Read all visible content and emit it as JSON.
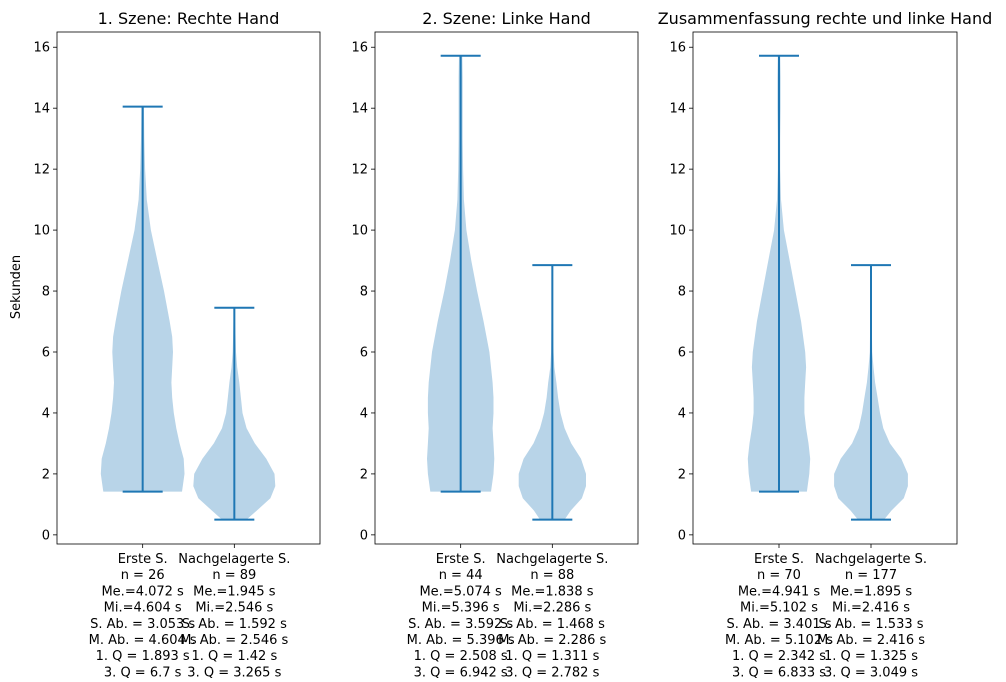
{
  "chart_data": {
    "type": "violin",
    "ylabel": "Sekunden",
    "ylim": [
      -0.3,
      16.5
    ],
    "yticks": [
      0,
      2,
      4,
      6,
      8,
      10,
      12,
      14,
      16
    ],
    "colors": {
      "body": "#b8d4e8",
      "line": "#1f77b4"
    },
    "panels": [
      {
        "title": "1. Szene: Rechte Hand",
        "violins": [
          {
            "labels": [
              "Erste S.",
              "n = 26",
              "Me.=4.072 s",
              "Mi.=4.604 s",
              "S. Ab. = 3.053 s",
              "M. Ab. = 4.604 s",
              "1. Q = 1.893 s",
              "3. Q = 6.7 s"
            ],
            "min": 1.42,
            "max": 14.05,
            "density": [
              [
                1.42,
                0.96
              ],
              [
                1.6,
                0.98
              ],
              [
                2.0,
                1.02
              ],
              [
                2.5,
                1.0
              ],
              [
                3.0,
                0.9
              ],
              [
                3.5,
                0.82
              ],
              [
                4.0,
                0.76
              ],
              [
                4.5,
                0.72
              ],
              [
                5.0,
                0.7
              ],
              [
                5.5,
                0.72
              ],
              [
                6.0,
                0.74
              ],
              [
                6.5,
                0.72
              ],
              [
                7.0,
                0.66
              ],
              [
                8.0,
                0.52
              ],
              [
                9.0,
                0.36
              ],
              [
                10.0,
                0.2
              ],
              [
                11.0,
                0.1
              ],
              [
                12.0,
                0.06
              ],
              [
                13.0,
                0.04
              ],
              [
                14.05,
                0.03
              ]
            ]
          },
          {
            "labels": [
              "Nachgelagerte S.",
              "n = 89",
              "Me.=1.945 s",
              "Mi.=2.546 s",
              "S. Ab. = 1.592 s",
              "M. Ab. = 2.546 s",
              "1. Q = 1.42 s",
              "3. Q = 3.265 s"
            ],
            "min": 0.5,
            "max": 7.45,
            "density": [
              [
                0.5,
                0.3
              ],
              [
                0.8,
                0.55
              ],
              [
                1.2,
                0.88
              ],
              [
                1.6,
                1.0
              ],
              [
                2.0,
                0.98
              ],
              [
                2.5,
                0.78
              ],
              [
                3.0,
                0.5
              ],
              [
                3.5,
                0.3
              ],
              [
                4.0,
                0.2
              ],
              [
                4.5,
                0.16
              ],
              [
                5.0,
                0.12
              ],
              [
                5.5,
                0.07
              ],
              [
                6.0,
                0.04
              ],
              [
                6.5,
                0.03
              ],
              [
                7.0,
                0.02
              ],
              [
                7.45,
                0.02
              ]
            ]
          }
        ]
      },
      {
        "title": "2. Szene: Linke Hand",
        "violins": [
          {
            "labels": [
              "Erste S.",
              "n = 44",
              "Me.=5.074 s",
              "Mi.=5.396 s",
              "S. Ab. = 3.592 s",
              "M. Ab. = 5.396 s",
              "1. Q = 2.508 s",
              "3. Q = 6.942 s"
            ],
            "min": 1.42,
            "max": 15.72,
            "density": [
              [
                1.42,
                0.74
              ],
              [
                2.0,
                0.8
              ],
              [
                2.5,
                0.82
              ],
              [
                3.0,
                0.8
              ],
              [
                3.5,
                0.78
              ],
              [
                4.0,
                0.8
              ],
              [
                4.5,
                0.8
              ],
              [
                5.0,
                0.78
              ],
              [
                6.0,
                0.7
              ],
              [
                7.0,
                0.56
              ],
              [
                8.0,
                0.4
              ],
              [
                9.0,
                0.26
              ],
              [
                10.0,
                0.14
              ],
              [
                11.0,
                0.08
              ],
              [
                12.0,
                0.06
              ],
              [
                13.0,
                0.05
              ],
              [
                14.0,
                0.05
              ],
              [
                15.0,
                0.05
              ],
              [
                15.72,
                0.04
              ]
            ]
          },
          {
            "labels": [
              "Nachgelagerte S.",
              "n = 88",
              "Me.=1.838 s",
              "Mi.=2.286 s",
              "S. Ab. = 1.468 s",
              "M. Ab. = 2.286 s",
              "1. Q = 1.311 s",
              "3. Q = 2.782 s"
            ],
            "min": 0.5,
            "max": 8.85,
            "density": [
              [
                0.5,
                0.3
              ],
              [
                0.8,
                0.45
              ],
              [
                1.2,
                0.72
              ],
              [
                1.6,
                0.82
              ],
              [
                2.0,
                0.82
              ],
              [
                2.5,
                0.7
              ],
              [
                3.0,
                0.46
              ],
              [
                3.5,
                0.3
              ],
              [
                4.0,
                0.2
              ],
              [
                4.5,
                0.14
              ],
              [
                5.0,
                0.1
              ],
              [
                5.5,
                0.05
              ],
              [
                6.0,
                0.03
              ],
              [
                7.0,
                0.02
              ],
              [
                8.0,
                0.02
              ],
              [
                8.85,
                0.02
              ]
            ]
          }
        ]
      },
      {
        "title": "Zusammenfassung rechte und linke Hand",
        "violins": [
          {
            "labels": [
              "Erste S.",
              "n = 70",
              "Me.=4.941 s",
              "Mi.=5.102 s",
              "S. Ab. = 3.401 s",
              "M. Ab. = 5.102 s",
              "1. Q = 2.342 s",
              "3. Q = 6.833 s"
            ],
            "min": 1.42,
            "max": 15.72,
            "density": [
              [
                1.42,
                0.68
              ],
              [
                2.0,
                0.74
              ],
              [
                2.5,
                0.76
              ],
              [
                3.0,
                0.72
              ],
              [
                3.5,
                0.66
              ],
              [
                4.0,
                0.62
              ],
              [
                4.5,
                0.62
              ],
              [
                5.0,
                0.64
              ],
              [
                5.5,
                0.66
              ],
              [
                6.0,
                0.64
              ],
              [
                7.0,
                0.54
              ],
              [
                8.0,
                0.4
              ],
              [
                9.0,
                0.26
              ],
              [
                10.0,
                0.12
              ],
              [
                11.0,
                0.05
              ],
              [
                12.0,
                0.03
              ],
              [
                13.0,
                0.03
              ],
              [
                14.0,
                0.04
              ],
              [
                15.0,
                0.04
              ],
              [
                15.72,
                0.03
              ]
            ]
          },
          {
            "labels": [
              "Nachgelagerte S.",
              "n = 177",
              "Me.=1.895 s",
              "Mi.=2.416 s",
              "S. Ab. = 1.533 s",
              "M. Ab. = 2.416 s",
              "1. Q = 1.325 s",
              "3. Q = 3.049 s"
            ],
            "min": 0.5,
            "max": 8.85,
            "density": [
              [
                0.5,
                0.32
              ],
              [
                0.8,
                0.5
              ],
              [
                1.2,
                0.8
              ],
              [
                1.6,
                0.9
              ],
              [
                2.0,
                0.9
              ],
              [
                2.5,
                0.74
              ],
              [
                3.0,
                0.46
              ],
              [
                3.5,
                0.3
              ],
              [
                4.0,
                0.22
              ],
              [
                4.5,
                0.16
              ],
              [
                5.0,
                0.1
              ],
              [
                5.5,
                0.06
              ],
              [
                6.0,
                0.03
              ],
              [
                7.0,
                0.02
              ],
              [
                8.0,
                0.02
              ],
              [
                8.85,
                0.02
              ]
            ]
          }
        ]
      }
    ]
  }
}
